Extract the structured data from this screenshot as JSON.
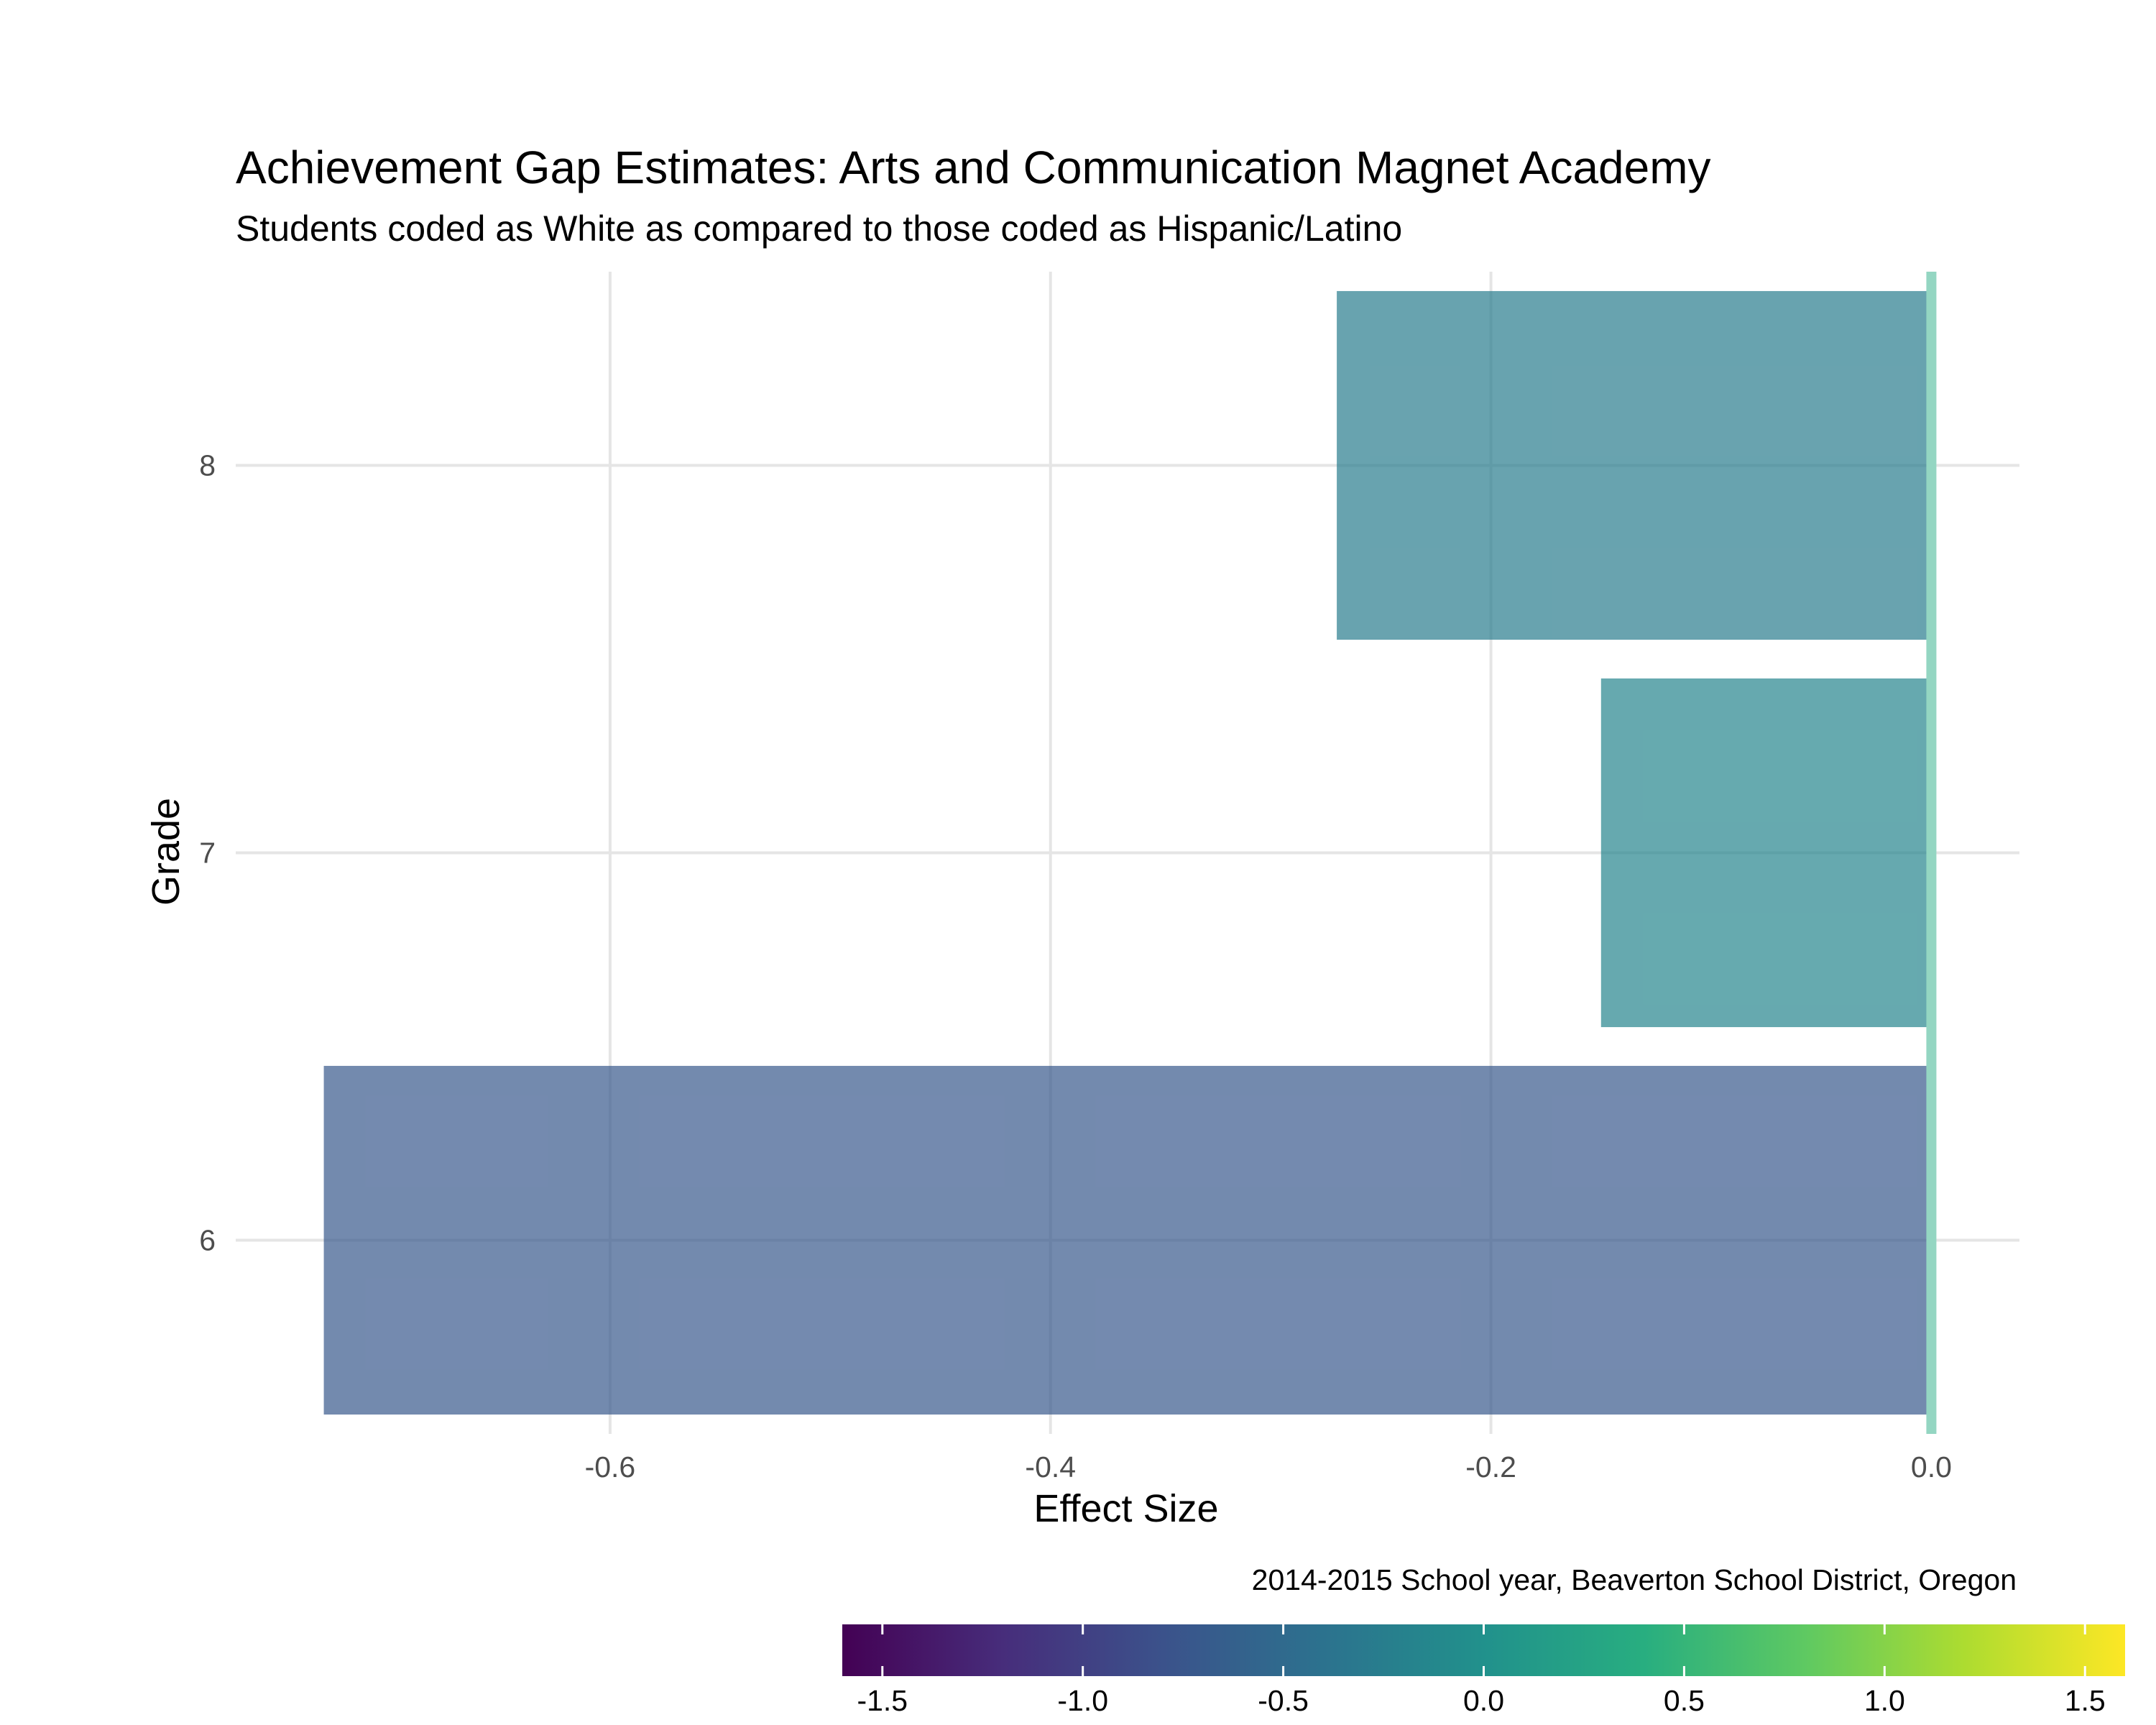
{
  "chart_data": {
    "type": "bar",
    "orientation": "horizontal",
    "title": "Achievement Gap Estimates: Arts and Communication Magnet Academy",
    "subtitle": "Students coded as White as compared to those coded as Hispanic/Latino",
    "xlabel": "Effect Size",
    "ylabel": "Grade",
    "caption": "2014-2015 School year, Beaverton School District, Oregon",
    "categories": [
      "6",
      "7",
      "8"
    ],
    "values": [
      -0.73,
      -0.15,
      -0.27
    ],
    "xlim": [
      -0.77,
      0.04
    ],
    "x_ticks": [
      -0.6,
      -0.4,
      -0.2,
      0.0
    ],
    "x_tick_labels": [
      "-0.6",
      "-0.4",
      "-0.2",
      "0.0"
    ],
    "reference_line": {
      "x": 0.0,
      "color": "#94d6c2"
    },
    "grid": true,
    "legend_position": "bottom-right",
    "colorbar": {
      "range": [
        -1.6,
        1.6
      ],
      "ticks": [
        -1.5,
        -1.0,
        -0.5,
        0.0,
        0.5,
        1.0,
        1.5
      ],
      "tick_labels": [
        "-1.5",
        "-1.0",
        "-0.5",
        "0.0",
        "0.5",
        "1.0",
        "1.5"
      ],
      "palette": "viridis"
    }
  }
}
